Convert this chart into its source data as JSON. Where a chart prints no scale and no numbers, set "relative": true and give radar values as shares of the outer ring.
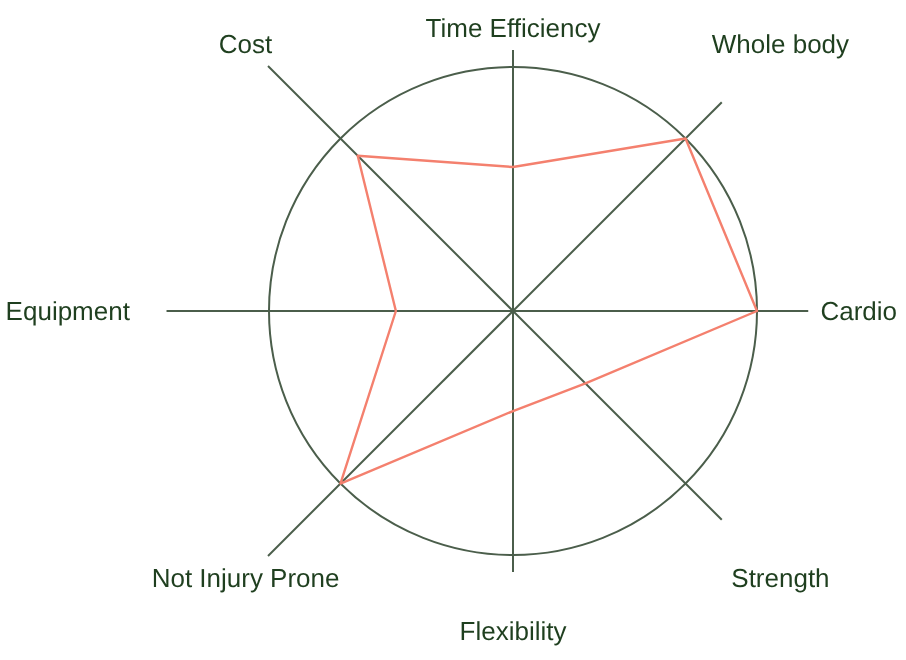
{
  "chart_data": {
    "type": "radar",
    "relative": true,
    "categories": [
      "Time Efficiency",
      "Whole body",
      "Cardio",
      "Strength",
      "Flexibility",
      "Not Injury Prone",
      "Equipment",
      "Cost"
    ],
    "series": [
      {
        "color": "#f4806e",
        "values": [
          0.59,
          1.0,
          1.0,
          0.42,
          0.41,
          1.0,
          0.48,
          0.9
        ]
      }
    ]
  }
}
